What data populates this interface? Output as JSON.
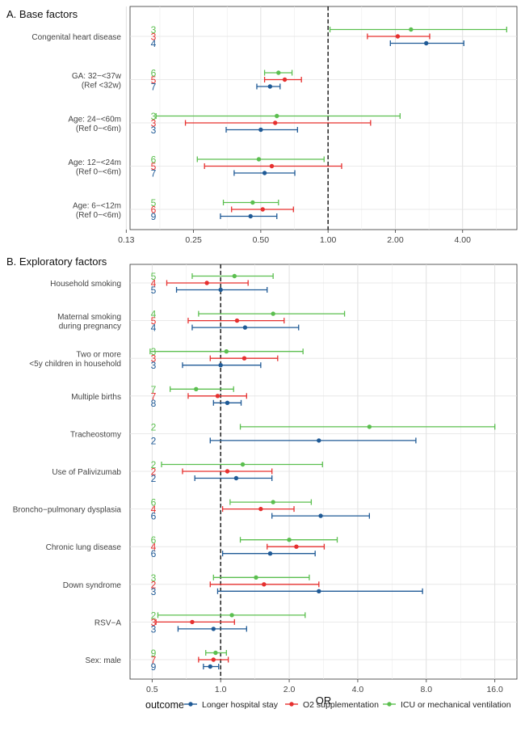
{
  "legend": {
    "title": "outcome",
    "entries": [
      {
        "label": "Longer hospital stay",
        "color": "#1f5a96"
      },
      {
        "label": "O2 supplementation",
        "color": "#e6302f"
      },
      {
        "label": "ICU or mechanical ventilation",
        "color": "#5bbf4f"
      }
    ],
    "placement": "bottom"
  },
  "chart_data": [
    {
      "type": "forest",
      "title": "A. Base factors",
      "xlabel": "",
      "scale": "log2",
      "reference_line": 1.0,
      "grid": true,
      "xlim": [
        0.13,
        7.0
      ],
      "x_ticks": [
        "0.13",
        "0.25",
        "0.50",
        "1.00",
        "2.00",
        "4.00"
      ],
      "x_tick_values": [
        0.125,
        0.25,
        0.5,
        1.0,
        2.0,
        4.0
      ],
      "rows": [
        {
          "label": [
            "Congenital heart disease"
          ],
          "series": {
            "icu": {
              "n": "3",
              "or": 2.35,
              "lo": 1.02,
              "hi": 6.3
            },
            "o2": {
              "n": "3",
              "or": 2.05,
              "lo": 1.5,
              "hi": 2.85
            },
            "stay": {
              "n": "4",
              "or": 2.75,
              "lo": 1.9,
              "hi": 4.05
            }
          }
        },
        {
          "label": [
            "GA: 32−<37w",
            "(Ref <32w)"
          ],
          "series": {
            "icu": {
              "n": "6",
              "or": 0.6,
              "lo": 0.52,
              "hi": 0.69
            },
            "o2": {
              "n": "5",
              "or": 0.64,
              "lo": 0.52,
              "hi": 0.76
            },
            "stay": {
              "n": "7",
              "or": 0.55,
              "lo": 0.48,
              "hi": 0.61
            }
          }
        },
        {
          "label": [
            "Age: 24−<60m",
            "(Ref 0−<6m)"
          ],
          "series": {
            "icu": {
              "n": "3",
              "or": 0.59,
              "lo": 0.17,
              "hi": 2.1
            },
            "o2": {
              "n": "3",
              "or": 0.58,
              "lo": 0.23,
              "hi": 1.55
            },
            "stay": {
              "n": "3",
              "or": 0.5,
              "lo": 0.35,
              "hi": 0.73
            }
          }
        },
        {
          "label": [
            "Age: 12−<24m",
            "(Ref 0−<6m)"
          ],
          "series": {
            "icu": {
              "n": "6",
              "or": 0.49,
              "lo": 0.26,
              "hi": 0.96
            },
            "o2": {
              "n": "5",
              "or": 0.56,
              "lo": 0.28,
              "hi": 1.15
            },
            "stay": {
              "n": "7",
              "or": 0.52,
              "lo": 0.38,
              "hi": 0.71
            }
          }
        },
        {
          "label": [
            "Age: 6−<12m",
            "(Ref 0−<6m)"
          ],
          "series": {
            "icu": {
              "n": "5",
              "or": 0.46,
              "lo": 0.34,
              "hi": 0.6
            },
            "o2": {
              "n": "6",
              "or": 0.51,
              "lo": 0.37,
              "hi": 0.7
            },
            "stay": {
              "n": "9",
              "or": 0.45,
              "lo": 0.33,
              "hi": 0.59
            }
          }
        }
      ]
    },
    {
      "type": "forest",
      "title": "B. Exploratory factors",
      "xlabel": "OR",
      "scale": "log2",
      "reference_line": 1.0,
      "grid": true,
      "xlim": [
        0.4,
        20.0
      ],
      "x_ticks": [
        "0.5",
        "1.0",
        "2.0",
        "4.0",
        "8.0",
        "16.0"
      ],
      "x_tick_values": [
        0.5,
        1.0,
        2.0,
        4.0,
        8.0,
        16.0
      ],
      "rows": [
        {
          "label": [
            "Household smoking"
          ],
          "series": {
            "icu": {
              "n": "5",
              "or": 1.15,
              "lo": 0.75,
              "hi": 1.7
            },
            "o2": {
              "n": "4",
              "or": 0.87,
              "lo": 0.58,
              "hi": 1.32
            },
            "stay": {
              "n": "5",
              "or": 1.0,
              "lo": 0.64,
              "hi": 1.6
            }
          }
        },
        {
          "label": [
            "Maternal smoking",
            "during pregnancy"
          ],
          "series": {
            "icu": {
              "n": "4",
              "or": 1.7,
              "lo": 0.8,
              "hi": 3.5
            },
            "o2": {
              "n": "5",
              "or": 1.18,
              "lo": 0.72,
              "hi": 1.9
            },
            "stay": {
              "n": "4",
              "or": 1.28,
              "lo": 0.75,
              "hi": 2.2
            }
          }
        },
        {
          "label": [
            "Two or more",
            "<5y children in household"
          ],
          "series": {
            "icu": {
              "n": "3",
              "or": 1.06,
              "lo": 0.49,
              "hi": 2.3
            },
            "o2": {
              "n": "3",
              "or": 1.27,
              "lo": 0.9,
              "hi": 1.78
            },
            "stay": {
              "n": "3",
              "or": 1.0,
              "lo": 0.68,
              "hi": 1.5
            }
          }
        },
        {
          "label": [
            "Multiple births"
          ],
          "series": {
            "icu": {
              "n": "7",
              "or": 0.78,
              "lo": 0.6,
              "hi": 1.14
            },
            "o2": {
              "n": "7",
              "or": 0.97,
              "lo": 0.72,
              "hi": 1.3
            },
            "stay": {
              "n": "8",
              "or": 1.07,
              "lo": 0.93,
              "hi": 1.23
            }
          }
        },
        {
          "label": [
            "Tracheostomy"
          ],
          "series": {
            "icu": {
              "n": "2",
              "or": 4.5,
              "lo": 1.22,
              "hi": 16.0
            },
            "stay": {
              "n": "2",
              "or": 2.7,
              "lo": 0.9,
              "hi": 7.2
            }
          }
        },
        {
          "label": [
            "Use of Palivizumab"
          ],
          "series": {
            "icu": {
              "n": "2",
              "or": 1.25,
              "lo": 0.55,
              "hi": 2.8
            },
            "o2": {
              "n": "2",
              "or": 1.07,
              "lo": 0.68,
              "hi": 1.68
            },
            "stay": {
              "n": "2",
              "or": 1.17,
              "lo": 0.77,
              "hi": 1.68
            }
          }
        },
        {
          "label": [
            "Broncho−pulmonary dysplasia"
          ],
          "series": {
            "icu": {
              "n": "6",
              "or": 1.7,
              "lo": 1.1,
              "hi": 2.5
            },
            "o2": {
              "n": "4",
              "or": 1.5,
              "lo": 1.02,
              "hi": 2.1
            },
            "stay": {
              "n": "6",
              "or": 2.75,
              "lo": 1.68,
              "hi": 4.5
            }
          }
        },
        {
          "label": [
            "Chronic lung disease"
          ],
          "series": {
            "icu": {
              "n": "6",
              "or": 2.0,
              "lo": 1.22,
              "hi": 3.25
            },
            "o2": {
              "n": "4",
              "or": 2.15,
              "lo": 1.6,
              "hi": 2.85
            },
            "stay": {
              "n": "6",
              "or": 1.65,
              "lo": 1.02,
              "hi": 2.6
            }
          }
        },
        {
          "label": [
            "Down syndrome"
          ],
          "series": {
            "icu": {
              "n": "3",
              "or": 1.43,
              "lo": 0.93,
              "hi": 2.45
            },
            "o2": {
              "n": "2",
              "or": 1.55,
              "lo": 0.9,
              "hi": 2.7
            },
            "stay": {
              "n": "3",
              "or": 2.7,
              "lo": 0.97,
              "hi": 7.7
            }
          }
        },
        {
          "label": [
            "RSV−A"
          ],
          "series": {
            "icu": {
              "n": "2",
              "or": 1.12,
              "lo": 0.53,
              "hi": 2.35
            },
            "o2": {
              "n": "3",
              "or": 0.75,
              "lo": 0.52,
              "hi": 1.15
            },
            "stay": {
              "n": "3",
              "or": 0.93,
              "lo": 0.65,
              "hi": 1.3
            }
          }
        },
        {
          "label": [
            "Sex: male"
          ],
          "series": {
            "icu": {
              "n": "9",
              "or": 0.95,
              "lo": 0.86,
              "hi": 1.06
            },
            "o2": {
              "n": "7",
              "or": 0.93,
              "lo": 0.8,
              "hi": 1.08
            },
            "stay": {
              "n": "9",
              "or": 0.9,
              "lo": 0.84,
              "hi": 0.98
            }
          }
        }
      ]
    }
  ]
}
